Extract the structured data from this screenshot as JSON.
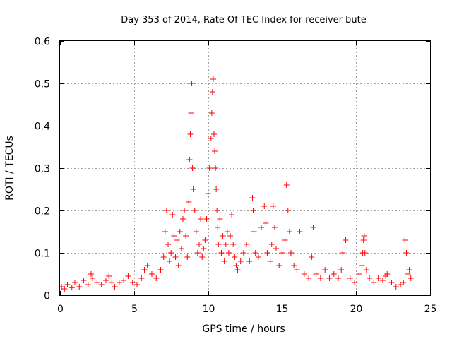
{
  "chart_data": {
    "type": "scatter",
    "title": "Day 353 of 2014, Rate Of TEC Index for receiver bute",
    "xlabel": "GPS time / hours",
    "ylabel": "ROTI / TECUs",
    "xlim": [
      0,
      25
    ],
    "ylim": [
      0,
      0.6
    ],
    "x_ticks": [
      "0",
      "5",
      "10",
      "15",
      "20",
      "25"
    ],
    "y_ticks": [
      "0",
      "0.1",
      "0.2",
      "0.3",
      "0.4",
      "0.5",
      "0.6"
    ],
    "grid": true,
    "marker": "+",
    "colors": {
      "points": "#ff0000",
      "grid": "#a0a0a0",
      "frame": "#000000"
    },
    "series": [
      {
        "name": "ROTI",
        "x": [
          0.1,
          0.3,
          0.5,
          0.8,
          1.0,
          1.3,
          1.6,
          1.9,
          2.1,
          2.2,
          2.5,
          2.8,
          3.1,
          3.3,
          3.5,
          3.7,
          4.0,
          4.3,
          4.6,
          4.9,
          5.2,
          5.5,
          5.7,
          5.9,
          6.2,
          6.5,
          6.8,
          7.0,
          7.1,
          7.2,
          7.3,
          7.4,
          7.5,
          7.6,
          7.7,
          7.8,
          7.9,
          8.0,
          8.1,
          8.2,
          8.3,
          8.4,
          8.5,
          8.6,
          8.7,
          8.75,
          8.8,
          8.85,
          8.9,
          8.95,
          9.0,
          9.1,
          9.2,
          9.3,
          9.4,
          9.5,
          9.6,
          9.7,
          9.8,
          9.9,
          10.0,
          10.1,
          10.2,
          10.25,
          10.3,
          10.35,
          10.4,
          10.45,
          10.5,
          10.55,
          10.6,
          10.65,
          10.7,
          10.8,
          10.9,
          11.0,
          11.1,
          11.2,
          11.3,
          11.4,
          11.5,
          11.6,
          11.7,
          11.8,
          11.9,
          12.0,
          12.2,
          12.4,
          12.6,
          12.8,
          13.0,
          13.05,
          13.1,
          13.2,
          13.4,
          13.6,
          13.8,
          13.9,
          14.0,
          14.2,
          14.3,
          14.4,
          14.5,
          14.6,
          14.8,
          15.0,
          15.2,
          15.3,
          15.4,
          15.5,
          15.6,
          15.8,
          16.0,
          16.2,
          16.5,
          16.8,
          17.0,
          17.1,
          17.3,
          17.6,
          17.9,
          18.2,
          18.5,
          18.8,
          19.0,
          19.1,
          19.3,
          19.6,
          19.9,
          20.2,
          20.4,
          20.45,
          20.5,
          20.55,
          20.6,
          20.7,
          20.9,
          21.2,
          21.5,
          21.8,
          22.0,
          22.1,
          22.4,
          22.7,
          23.0,
          23.2,
          23.3,
          23.4,
          23.5,
          23.6,
          23.7
        ],
        "y": [
          0.02,
          0.015,
          0.025,
          0.018,
          0.03,
          0.02,
          0.035,
          0.025,
          0.05,
          0.04,
          0.03,
          0.025,
          0.035,
          0.045,
          0.03,
          0.02,
          0.03,
          0.035,
          0.045,
          0.03,
          0.025,
          0.04,
          0.06,
          0.07,
          0.05,
          0.04,
          0.06,
          0.09,
          0.15,
          0.2,
          0.12,
          0.08,
          0.1,
          0.19,
          0.14,
          0.09,
          0.13,
          0.07,
          0.15,
          0.11,
          0.18,
          0.2,
          0.14,
          0.09,
          0.22,
          0.32,
          0.38,
          0.43,
          0.5,
          0.3,
          0.25,
          0.2,
          0.15,
          0.1,
          0.12,
          0.18,
          0.09,
          0.11,
          0.13,
          0.18,
          0.24,
          0.3,
          0.37,
          0.43,
          0.48,
          0.51,
          0.38,
          0.34,
          0.3,
          0.25,
          0.2,
          0.16,
          0.12,
          0.18,
          0.1,
          0.14,
          0.08,
          0.12,
          0.15,
          0.1,
          0.14,
          0.19,
          0.12,
          0.09,
          0.07,
          0.06,
          0.08,
          0.1,
          0.12,
          0.08,
          0.23,
          0.2,
          0.15,
          0.1,
          0.09,
          0.16,
          0.21,
          0.17,
          0.1,
          0.08,
          0.12,
          0.21,
          0.16,
          0.11,
          0.07,
          0.1,
          0.13,
          0.26,
          0.2,
          0.15,
          0.1,
          0.07,
          0.06,
          0.15,
          0.05,
          0.04,
          0.09,
          0.16,
          0.05,
          0.04,
          0.06,
          0.04,
          0.05,
          0.04,
          0.06,
          0.1,
          0.13,
          0.04,
          0.03,
          0.05,
          0.07,
          0.1,
          0.13,
          0.14,
          0.1,
          0.06,
          0.04,
          0.03,
          0.04,
          0.035,
          0.045,
          0.05,
          0.03,
          0.02,
          0.025,
          0.03,
          0.13,
          0.1,
          0.05,
          0.06,
          0.04
        ]
      }
    ]
  }
}
